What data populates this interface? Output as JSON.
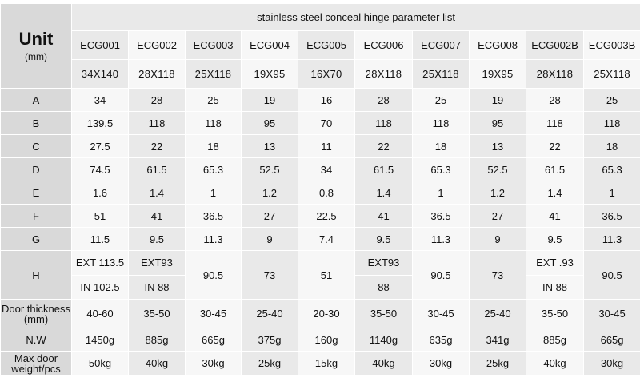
{
  "unit_title": "Unit",
  "unit_sub": "(mm)",
  "table_title": "stainless steel conceal hinge parameter list",
  "models": [
    "ECG001",
    "ECG002",
    "ECG003",
    "ECG004",
    "ECG005",
    "ECG006",
    "ECG007",
    "ECG008",
    "ECG002B",
    "ECG003B"
  ],
  "sizes": [
    "34X140",
    "28X118",
    "25X118",
    "19X95",
    "16X70",
    "28X118",
    "25X118",
    "19X95",
    "28X118",
    "25X118"
  ],
  "rows": [
    {
      "label": "A",
      "values": [
        "34",
        "28",
        "25",
        "19",
        "16",
        "28",
        "25",
        "19",
        "28",
        "25"
      ]
    },
    {
      "label": "B",
      "values": [
        "139.5",
        "118",
        "118",
        "95",
        "70",
        "118",
        "118",
        "95",
        "118",
        "118"
      ]
    },
    {
      "label": "C",
      "values": [
        "27.5",
        "22",
        "18",
        "13",
        "11",
        "22",
        "18",
        "13",
        "22",
        "18"
      ]
    },
    {
      "label": "D",
      "values": [
        "74.5",
        "61.5",
        "65.3",
        "52.5",
        "34",
        "61.5",
        "65.3",
        "52.5",
        "61.5",
        "65.3"
      ]
    },
    {
      "label": "E",
      "values": [
        "1.6",
        "1.4",
        "1",
        "1.2",
        "0.8",
        "1.4",
        "1",
        "1.2",
        "1.4",
        "1"
      ]
    },
    {
      "label": "F",
      "values": [
        "51",
        "41",
        "36.5",
        "27",
        "22.5",
        "41",
        "36.5",
        "27",
        "41",
        "36.5"
      ]
    },
    {
      "label": "G",
      "values": [
        "11.5",
        "9.5",
        "11.3",
        "9",
        "7.4",
        "9.5",
        "11.3",
        "9",
        "9.5",
        "11.3"
      ]
    }
  ],
  "h_row": {
    "label": "H",
    "cells": [
      {
        "ext": "EXT 113.5",
        "in": "IN 102.5"
      },
      {
        "ext": "EXT93",
        "in": "IN 88"
      },
      {
        "single": "90.5"
      },
      {
        "single": "73"
      },
      {
        "single": "51"
      },
      {
        "ext": "EXT93",
        "in": "88"
      },
      {
        "single": "90.5"
      },
      {
        "single": "73"
      },
      {
        "ext": "EXT .93",
        "in": "IN   88"
      },
      {
        "single": "90.5"
      }
    ]
  },
  "door_thickness": {
    "label_line1": "Door thickness",
    "label_line2": "(mm)",
    "values": [
      "40-60",
      "35-50",
      "30-45",
      "25-40",
      "20-30",
      "35-50",
      "30-45",
      "25-40",
      "35-50",
      "30-45"
    ]
  },
  "nw": {
    "label": "N.W",
    "values": [
      "1450g",
      "885g",
      "665g",
      "375g",
      "160g",
      "1140g",
      "635g",
      "341g",
      "885g",
      "665g"
    ]
  },
  "max_door": {
    "label_line1": "Max door",
    "label_line2": "weight/pcs",
    "values": [
      "50kg",
      "40kg",
      "30kg",
      "25kg",
      "15kg",
      "40kg",
      "30kg",
      "25kg",
      "40kg",
      "30kg"
    ]
  }
}
